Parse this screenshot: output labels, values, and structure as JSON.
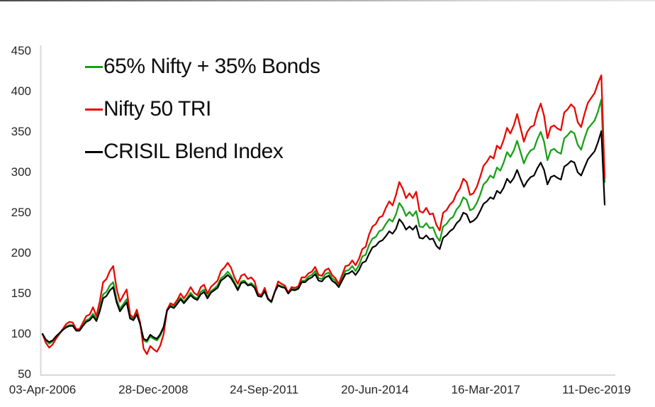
{
  "chart_data": {
    "type": "line",
    "title": "",
    "description": "Growth of 100 invested on 03-Apr-2006: Nifty 50 TRI vs 65:35 equity-bond blend vs CRISIL Blend Index, monthly points through the early-2020 crash",
    "x_axis": {
      "tick_labels": [
        "03-Apr-2006",
        "28-Dec-2008",
        "24-Sep-2011",
        "20-Jun-2014",
        "16-Mar-2017",
        "11-Dec-2019"
      ],
      "start": "Apr-2006",
      "end": "Mar-2020",
      "interval": "monthly"
    },
    "y_axis": {
      "min": 50,
      "max": 450,
      "step": 50,
      "ticks": [
        50,
        100,
        150,
        200,
        250,
        300,
        350,
        400,
        450
      ]
    },
    "grid": "off",
    "legend_position": "top-left",
    "axis_color": "#d9d9d9",
    "series": [
      {
        "name": "65% Nifty + 35% Bonds",
        "color": "#18a018",
        "values": [
          100,
          92,
          88,
          91,
          96,
          100,
          105,
          109,
          111,
          111,
          105,
          105,
          111,
          117,
          119,
          125,
          118,
          131,
          149,
          152,
          160,
          164,
          143,
          131,
          137,
          143,
          121,
          118,
          126,
          113,
          92,
          90,
          97,
          94,
          92,
          98,
          108,
          130,
          136,
          134,
          139,
          145,
          140,
          145,
          151,
          146,
          144,
          152,
          155,
          146,
          153,
          156,
          160,
          169,
          172,
          177,
          172,
          164,
          156,
          165,
          166,
          161,
          163,
          159,
          148,
          146,
          154,
          143,
          139,
          152,
          161,
          159,
          158,
          150,
          156,
          155,
          157,
          166,
          166,
          171,
          173,
          178,
          169,
          168,
          174,
          176,
          169,
          166,
          160,
          169,
          178,
          179,
          184,
          178,
          185,
          196,
          198,
          210,
          218,
          220,
          227,
          229,
          236,
          242,
          239,
          248,
          262,
          256,
          246,
          251,
          246,
          252,
          233,
          232,
          237,
          231,
          232,
          221,
          215,
          233,
          236,
          242,
          245,
          254,
          259,
          269,
          266,
          253,
          255,
          262,
          272,
          285,
          289,
          296,
          293,
          306,
          302,
          312,
          325,
          319,
          327,
          339,
          325,
          311,
          321,
          327,
          329,
          341,
          350,
          338,
          315,
          327,
          329,
          325,
          323,
          342,
          346,
          351,
          348,
          334,
          328,
          342,
          354,
          359,
          364,
          375,
          390,
          288
        ]
      },
      {
        "name": "Nifty 50 TRI",
        "color": "#e60800",
        "values": [
          100,
          89,
          83,
          87,
          94,
          100,
          106,
          112,
          115,
          114,
          106,
          106,
          114,
          122,
          124,
          133,
          122,
          140,
          164,
          168,
          178,
          184,
          156,
          140,
          148,
          155,
          124,
          120,
          130,
          114,
          82,
          75,
          85,
          81,
          78,
          86,
          100,
          130,
          138,
          136,
          142,
          150,
          144,
          150,
          158,
          151,
          148,
          158,
          161,
          150,
          158,
          162,
          166,
          178,
          182,
          188,
          182,
          170,
          162,
          172,
          174,
          168,
          170,
          165,
          150,
          148,
          157,
          144,
          140,
          152,
          165,
          162,
          160,
          151,
          158,
          157,
          159,
          170,
          170,
          175,
          177,
          183,
          173,
          172,
          179,
          181,
          173,
          169,
          162,
          173,
          184,
          185,
          191,
          185,
          193,
          205,
          208,
          223,
          233,
          236,
          244,
          246,
          256,
          264,
          259,
          272,
          288,
          280,
          268,
          274,
          268,
          276,
          252,
          250,
          256,
          248,
          249,
          235,
          228,
          250,
          253,
          260,
          264,
          274,
          280,
          292,
          288,
          272,
          274,
          282,
          294,
          308,
          313,
          320,
          317,
          333,
          329,
          340,
          355,
          348,
          358,
          372,
          355,
          338,
          350,
          356,
          358,
          374,
          385,
          370,
          342,
          356,
          358,
          354,
          352,
          374,
          378,
          384,
          380,
          362,
          356,
          372,
          386,
          392,
          398,
          410,
          420,
          293
        ]
      },
      {
        "name": "CRISIL Blend Index",
        "color": "#000000",
        "values": [
          100,
          93,
          90,
          92,
          97,
          101,
          105,
          108,
          110,
          110,
          104,
          104,
          110,
          115,
          117,
          122,
          116,
          128,
          144,
          147,
          154,
          158,
          139,
          128,
          134,
          139,
          119,
          117,
          124,
          112,
          94,
          92,
          99,
          96,
          94,
          100,
          109,
          129,
          134,
          132,
          137,
          143,
          138,
          143,
          148,
          144,
          142,
          149,
          152,
          144,
          151,
          154,
          157,
          166,
          169,
          173,
          169,
          162,
          154,
          163,
          164,
          160,
          161,
          157,
          147,
          146,
          153,
          143,
          140,
          152,
          160,
          158,
          157,
          150,
          155,
          154,
          156,
          164,
          164,
          168,
          170,
          174,
          166,
          165,
          170,
          172,
          166,
          163,
          158,
          166,
          174,
          175,
          178,
          173,
          179,
          188,
          190,
          199,
          207,
          209,
          214,
          216,
          221,
          227,
          224,
          230,
          242,
          237,
          229,
          233,
          229,
          234,
          219,
          218,
          222,
          217,
          218,
          209,
          205,
          219,
          222,
          227,
          230,
          237,
          241,
          250,
          248,
          238,
          240,
          244,
          252,
          261,
          264,
          269,
          267,
          277,
          274,
          281,
          292,
          287,
          293,
          303,
          292,
          282,
          289,
          294,
          296,
          305,
          312,
          303,
          285,
          294,
          296,
          293,
          291,
          307,
          310,
          314,
          312,
          300,
          296,
          306,
          316,
          321,
          326,
          337,
          351,
          260
        ]
      }
    ]
  }
}
